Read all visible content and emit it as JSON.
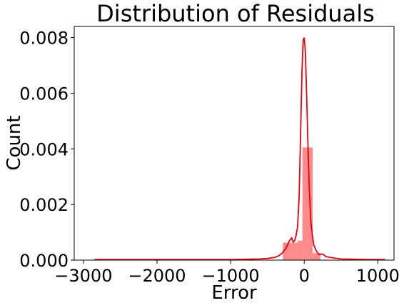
{
  "chart_data": {
    "type": "bar",
    "title": "Distribution of Residuals",
    "xlabel": "Error",
    "ylabel": "Count",
    "xlim": [
      -3000,
      1200
    ],
    "ylim": [
      0,
      0.0084
    ],
    "xticks": [
      -3000,
      -2000,
      -1000,
      0,
      1000
    ],
    "xtick_labels": [
      "−3000",
      "−2000",
      "−1000",
      "0",
      "1000"
    ],
    "yticks": [
      0,
      0.002,
      0.004,
      0.006,
      0.008
    ],
    "ytick_labels": [
      "0.000",
      "0.002",
      "0.004",
      "0.006",
      "0.008"
    ],
    "grid": false,
    "legend": "none",
    "bar_color": "#ff8c8c",
    "line_color": "#e8000b",
    "histogram": {
      "bins": [
        {
          "x0": -290,
          "x1": -90,
          "value": 0.00063
        },
        {
          "x0": -90,
          "x1": -25,
          "value": 0.0007
        },
        {
          "x0": -25,
          "x1": 115,
          "value": 0.00405
        },
        {
          "x0": 115,
          "x1": 220,
          "value": 0.00025
        }
      ]
    },
    "kde": {
      "x": [
        -2850,
        -2500,
        -2000,
        -1500,
        -1000,
        -800,
        -600,
        -500,
        -400,
        -350,
        -300,
        -250,
        -200,
        -170,
        -150,
        -130,
        -110,
        -90,
        -70,
        -50,
        -30,
        -15,
        0,
        15,
        30,
        50,
        70,
        90,
        110,
        130,
        160,
        200,
        250,
        300,
        350,
        400,
        500,
        700,
        900,
        1100
      ],
      "y": [
        2e-05,
        2e-05,
        2e-05,
        2e-05,
        2e-05,
        3e-05,
        4e-05,
        6e-05,
        0.0001,
        0.00015,
        0.00025,
        0.00042,
        0.0007,
        0.0008,
        0.00065,
        0.0007,
        0.0009,
        0.0012,
        0.0022,
        0.0045,
        0.0068,
        0.0079,
        0.008,
        0.0075,
        0.0062,
        0.0042,
        0.0025,
        0.0014,
        0.0009,
        0.00055,
        0.00035,
        0.0002,
        0.00022,
        0.00012,
        0.0001,
        8e-05,
        4e-05,
        3e-05,
        2e-05,
        2e-05
      ]
    }
  }
}
